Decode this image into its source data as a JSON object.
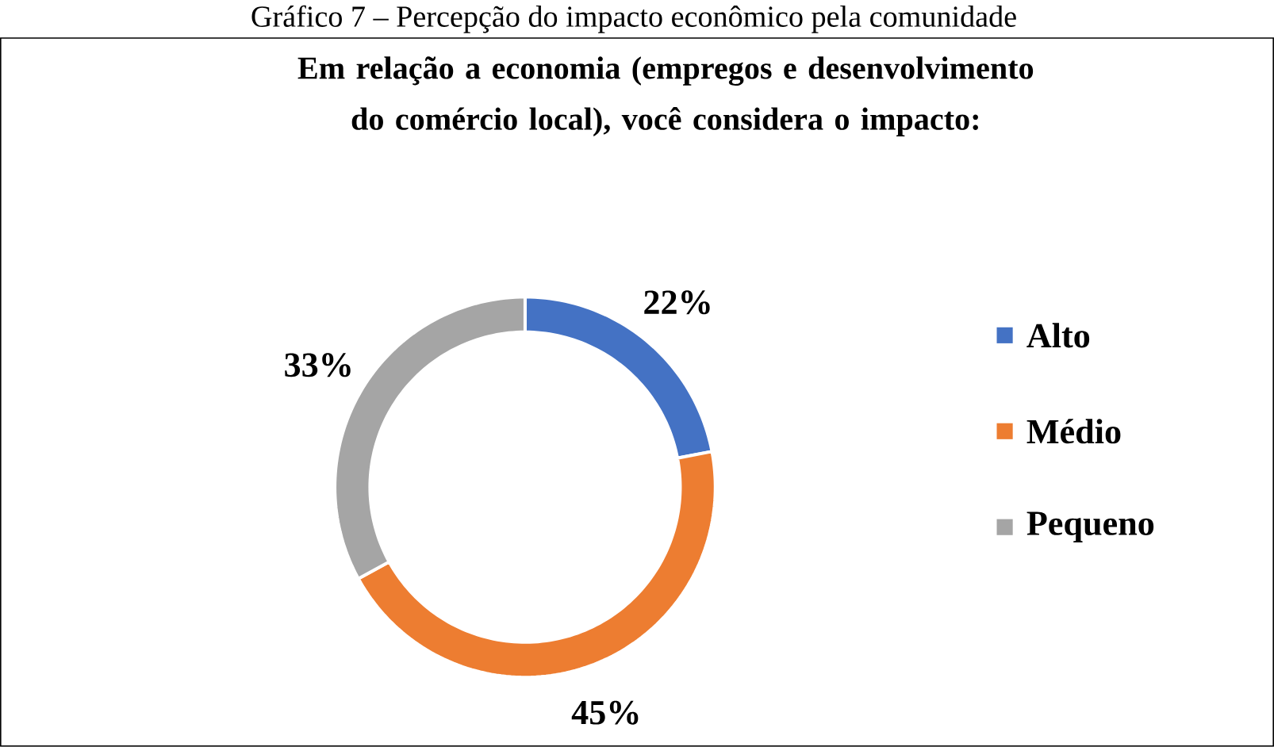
{
  "chart_data": {
    "type": "donut",
    "title": "Em relação a economia (empregos e desenvolvimento do comércio local), você considera o impacto:",
    "annotations": [
      "Gráfico 7 – Percepção do impacto econômico pela comunidade"
    ],
    "categories": [
      "Alto",
      "Médio",
      "Pequeno"
    ],
    "values": [
      22,
      45,
      33
    ],
    "value_labels": [
      "22%",
      "45%",
      "33%"
    ],
    "colors": [
      "#4472c4",
      "#ed7d31",
      "#a5a5a5"
    ],
    "legend": "right"
  }
}
